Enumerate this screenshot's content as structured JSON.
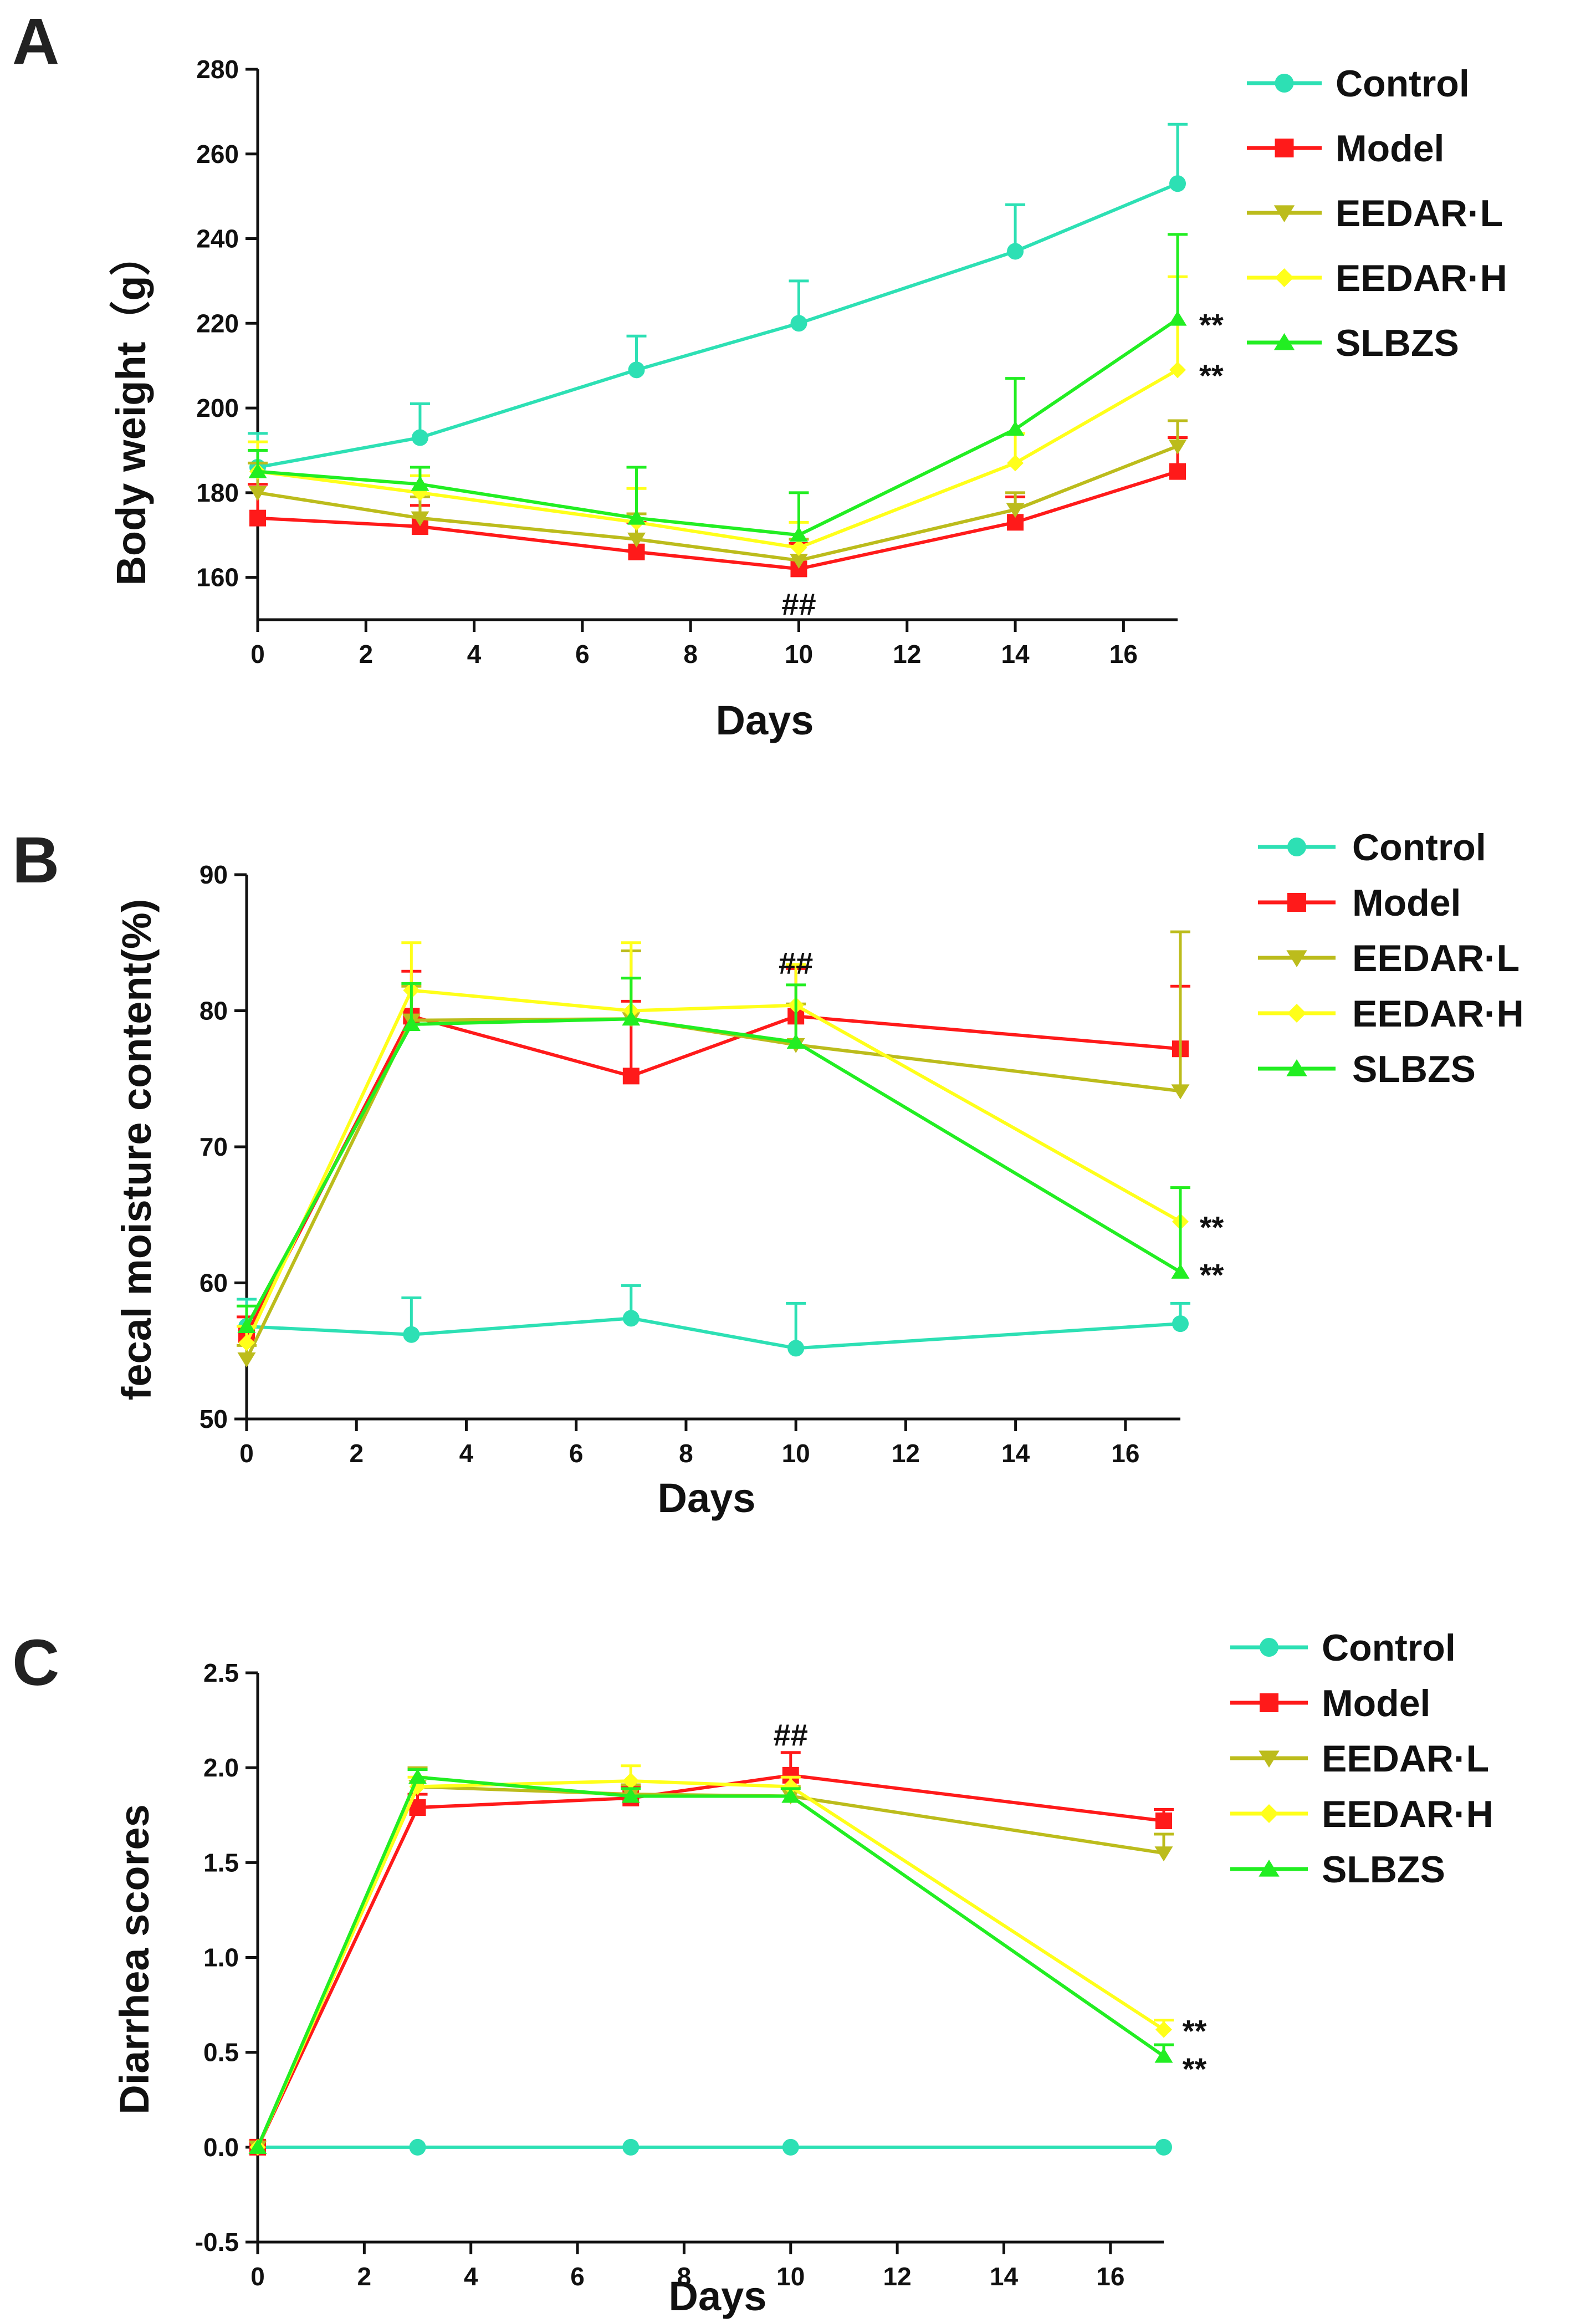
{
  "colors": {
    "Control": "#2de0b4",
    "Model": "#ff1a1a",
    "EEDAR·L": "#bcbc1c",
    "EEDAR·H": "#ffff1a",
    "SLBZS": "#22ee22"
  },
  "chart_data": [
    {
      "panel": "A",
      "type": "line",
      "xlabel": "Days",
      "ylabel": "Body weight（g）",
      "xlim": [
        0,
        17
      ],
      "ylim": [
        150,
        280
      ],
      "xticks": [
        "0",
        "2",
        "4",
        "6",
        "8",
        "10",
        "12",
        "14",
        "16"
      ],
      "yticks": [
        "160",
        "180",
        "200",
        "220",
        "240",
        "260",
        "280"
      ],
      "x": [
        0,
        3,
        7,
        10,
        14,
        17
      ],
      "series": [
        {
          "name": "Control",
          "marker": "circle",
          "values": [
            186,
            193,
            209,
            220,
            237,
            253
          ],
          "errors": [
            8,
            8,
            8,
            10,
            11,
            14
          ]
        },
        {
          "name": "Model",
          "marker": "square",
          "values": [
            174,
            172,
            166,
            162,
            173,
            185
          ],
          "errors": [
            8,
            5,
            7,
            6,
            6,
            8
          ]
        },
        {
          "name": "EEDAR·L",
          "marker": "triangle-down",
          "values": [
            180,
            174,
            169,
            164,
            176,
            191
          ],
          "errors": [
            7,
            5,
            6,
            5,
            4,
            6
          ]
        },
        {
          "name": "EEDAR·H",
          "marker": "diamond",
          "values": [
            185,
            180,
            173,
            167,
            187,
            209
          ],
          "errors": [
            7,
            4,
            8,
            6,
            7,
            22
          ]
        },
        {
          "name": "SLBZS",
          "marker": "triangle-up",
          "values": [
            185,
            182,
            174,
            170,
            195,
            221
          ],
          "errors": [
            5,
            4,
            12,
            10,
            12,
            20
          ]
        }
      ],
      "annotations": [
        {
          "text": "##",
          "x": 10,
          "y": 154
        },
        {
          "text": "**",
          "x": 17.4,
          "y": 220
        },
        {
          "text": "**",
          "x": 17.4,
          "y": 208
        }
      ]
    },
    {
      "panel": "B",
      "type": "line",
      "xlabel": "Days",
      "ylabel": "fecal moisture content(%)",
      "xlim": [
        0,
        17
      ],
      "ylim": [
        50,
        90
      ],
      "xticks": [
        "0",
        "2",
        "4",
        "6",
        "8",
        "10",
        "12",
        "14",
        "16"
      ],
      "yticks": [
        "50",
        "60",
        "70",
        "80",
        "90"
      ],
      "x": [
        0,
        3,
        7,
        10,
        17
      ],
      "series": [
        {
          "name": "Control",
          "marker": "circle",
          "values": [
            56.8,
            56.2,
            57.4,
            55.2,
            57.0
          ],
          "errors": [
            2.0,
            2.7,
            2.4,
            3.3,
            1.5
          ]
        },
        {
          "name": "Model",
          "marker": "square",
          "values": [
            56.2,
            79.6,
            75.2,
            79.6,
            77.2
          ],
          "errors": [
            1.3,
            3.3,
            5.5,
            3.5,
            4.6
          ]
        },
        {
          "name": "EEDAR·L",
          "marker": "triangle-down",
          "values": [
            54.4,
            79.3,
            79.4,
            77.5,
            74.1
          ],
          "errors": [
            1.0,
            2.5,
            5.0,
            3.0,
            11.7
          ]
        },
        {
          "name": "EEDAR·H",
          "marker": "diamond",
          "values": [
            55.6,
            81.5,
            80.0,
            80.4,
            64.5
          ],
          "errors": [
            1.2,
            3.5,
            5.0,
            3.0,
            2.5
          ]
        },
        {
          "name": "SLBZS",
          "marker": "triangle-up",
          "values": [
            56.8,
            79.0,
            79.4,
            77.7,
            60.8
          ],
          "errors": [
            1.5,
            3.0,
            3.0,
            4.2,
            6.2
          ]
        }
      ],
      "annotations": [
        {
          "text": "##",
          "x": 10,
          "y": 83.6
        },
        {
          "text": "**",
          "x": 17.35,
          "y": 64.2
        },
        {
          "text": "**",
          "x": 17.35,
          "y": 60.7
        }
      ]
    },
    {
      "panel": "C",
      "type": "line",
      "xlabel": "Days",
      "ylabel": "Diarrhea scores",
      "xlim": [
        0,
        17
      ],
      "ylim": [
        -0.5,
        2.5
      ],
      "xticks": [
        "0",
        "2",
        "4",
        "6",
        "8",
        "10",
        "12",
        "14",
        "16"
      ],
      "yticks": [
        "-0.5",
        "0.0",
        "0.5",
        "1.0",
        "1.5",
        "2.0",
        "2.5"
      ],
      "x": [
        0,
        3,
        7,
        10,
        17
      ],
      "series": [
        {
          "name": "Control",
          "marker": "circle",
          "values": [
            0.0,
            0.0,
            0.0,
            0.0,
            0.0
          ],
          "errors": [
            0,
            0,
            0,
            0,
            0
          ]
        },
        {
          "name": "Model",
          "marker": "square",
          "values": [
            0.0,
            1.79,
            1.84,
            1.96,
            1.72
          ],
          "errors": [
            0,
            0.07,
            0.06,
            0.12,
            0.06
          ]
        },
        {
          "name": "EEDAR·L",
          "marker": "triangle-down",
          "values": [
            0.0,
            1.9,
            1.86,
            1.85,
            1.55
          ],
          "errors": [
            0,
            0.1,
            0.05,
            0.05,
            0.1
          ]
        },
        {
          "name": "EEDAR·H",
          "marker": "diamond",
          "values": [
            0.0,
            1.9,
            1.93,
            1.9,
            0.62
          ],
          "errors": [
            0,
            0.05,
            0.08,
            0.05,
            0.05
          ]
        },
        {
          "name": "SLBZS",
          "marker": "triangle-up",
          "values": [
            0.0,
            1.95,
            1.85,
            1.85,
            0.48
          ],
          "errors": [
            0,
            0.04,
            0.04,
            0.04,
            0.06
          ]
        }
      ],
      "annotations": [
        {
          "text": "##",
          "x": 10,
          "y": 2.18
        },
        {
          "text": "**",
          "x": 17.35,
          "y": 0.62
        },
        {
          "text": "**",
          "x": 17.35,
          "y": 0.42
        }
      ]
    }
  ]
}
